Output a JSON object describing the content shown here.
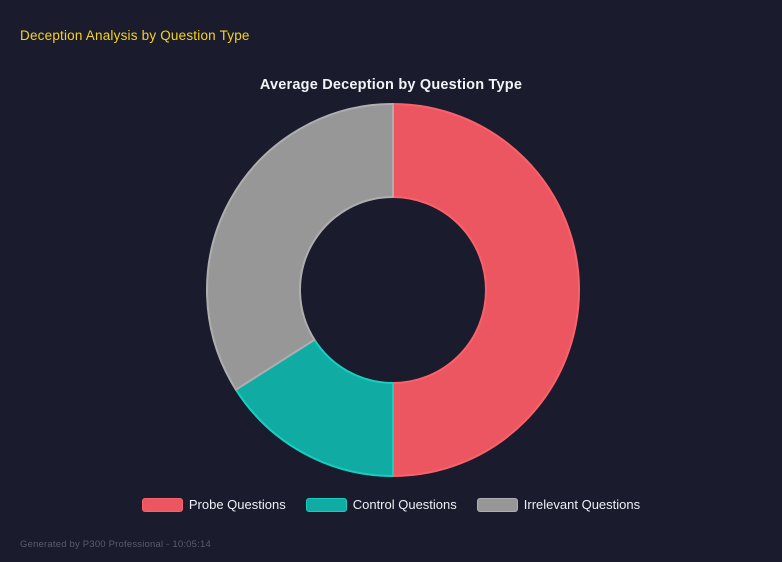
{
  "header": {
    "title": "Deception Analysis by Question Type"
  },
  "chart_data": {
    "type": "pie",
    "variant": "doughnut",
    "title": "Average Deception by Question Type",
    "legend_position": "bottom",
    "categories": [
      "Probe Questions",
      "Control Questions",
      "Irrelevant Questions"
    ],
    "values": [
      50,
      16,
      34
    ],
    "unit": "percent-of-circle (estimated from arc angles; no numeric labels shown)",
    "segments": [
      {
        "label": "Probe Questions",
        "value": 50,
        "color": "#ec5661",
        "border_color": "#fb616b"
      },
      {
        "label": "Control Questions",
        "value": 16,
        "color": "#10aba2",
        "border_color": "#17cfc1"
      },
      {
        "label": "Irrelevant Questions",
        "value": 34,
        "color": "#979797",
        "border_color": "#aeaeae"
      }
    ]
  },
  "footer": {
    "text": "Generated by P300 Professional - 10:05:14"
  },
  "colors": {
    "background": "#1a1b2d",
    "page_title": "#f5d321",
    "chart_title": "#f3f4f8",
    "legend_text": "#eef0f6",
    "footer_text": "#585d6e"
  }
}
